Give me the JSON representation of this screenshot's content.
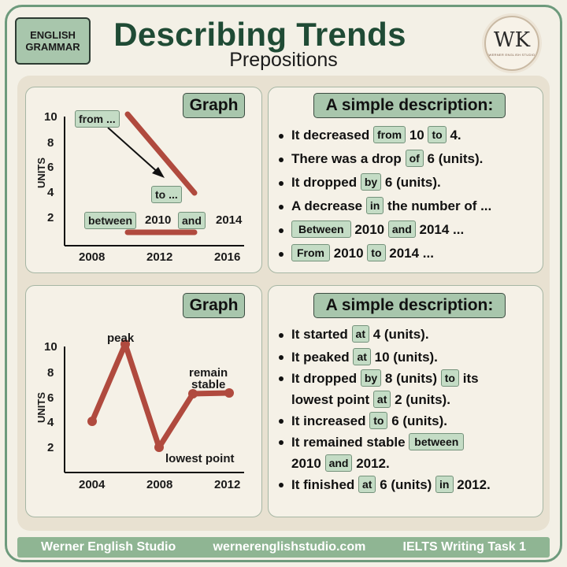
{
  "header": {
    "badge_line1": "ENGLISH",
    "badge_line2": "GRAMMAR",
    "title": "Describing Trends",
    "subtitle": "Prepositions",
    "logo_text": "WK",
    "logo_subtext": "WERNER ENGLISH STUDIO"
  },
  "top_graph": {
    "heading": "Graph",
    "ylabel": "UNITS",
    "yticks": [
      "10",
      "8",
      "6",
      "4",
      "2"
    ],
    "xticks": [
      "2008",
      "2012",
      "2016"
    ],
    "tag_from": "from ...",
    "tag_to": "to ...",
    "tag_between": "between",
    "label_2010": "2010",
    "tag_and": "and",
    "label_2014": "2014"
  },
  "top_desc": {
    "heading": "A simple description:",
    "lines": [
      {
        "t1": "It decreased",
        "p1": "from",
        "t2": "10",
        "p2": "to",
        "t3": "4."
      },
      {
        "t1": "There was a drop",
        "p1": "of",
        "t2": "6 (units)."
      },
      {
        "t1": "It dropped",
        "p1": "by",
        "t2": "6 (units)."
      },
      {
        "t1": "A decrease",
        "p1": "in",
        "t2": "the number of ..."
      },
      {
        "p1": "Between",
        "t2": "2010",
        "p2": "and",
        "t3": "2014 ..."
      },
      {
        "p1": "From",
        "t2": "2010",
        "p2": "to",
        "t3": "2014 ..."
      }
    ]
  },
  "bottom_graph": {
    "heading": "Graph",
    "ylabel": "UNITS",
    "yticks": [
      "10",
      "8",
      "6",
      "4",
      "2"
    ],
    "xticks": [
      "2004",
      "2008",
      "2012"
    ],
    "label_peak": "peak",
    "label_remain": "remain",
    "label_stable": "stable",
    "label_lowest": "lowest point"
  },
  "bottom_desc": {
    "heading": "A simple description:",
    "lines": [
      {
        "t1": "It started",
        "p1": "at",
        "t2": "4 (units)."
      },
      {
        "t1": "It peaked",
        "p1": "at",
        "t2": "10 (units)."
      },
      {
        "t1": "It dropped",
        "p1": "by",
        "t2": "8 (units)",
        "p2": "to",
        "t3": "its"
      },
      {
        "t1": "lowest point",
        "p1": "at",
        "t2": "2 (units)."
      },
      {
        "t1": "It increased",
        "p1": "to",
        "t2": "6 (units)."
      },
      {
        "t1": "It remained stable",
        "p1": "between"
      },
      {
        "t1": "2010",
        "p1": "and",
        "t2": "2012."
      },
      {
        "t1": "It finished",
        "p1": "at",
        "t2": "6 (units)",
        "p2": "in",
        "t3": "2012."
      }
    ]
  },
  "footer": {
    "studio": "Werner English Studio",
    "website": "wernerenglishstudio.com",
    "task": "IELTS Writing Task 1"
  },
  "colors": {
    "title_green": "#1f4b35",
    "tag_green": "#c4dcc5",
    "line_red": "#b04a3e",
    "footer_green": "#8fb593"
  }
}
